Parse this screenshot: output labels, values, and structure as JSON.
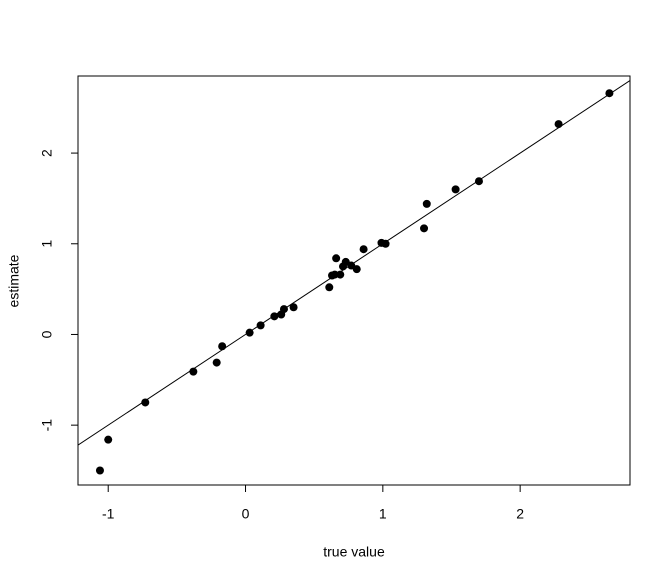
{
  "chart_data": {
    "type": "scatter",
    "x_label": "true value",
    "y_label": "estimate",
    "x": [
      -1.06,
      -1.0,
      -0.73,
      -0.38,
      -0.21,
      -0.17,
      0.03,
      0.11,
      0.21,
      0.26,
      0.28,
      0.35,
      0.61,
      0.63,
      0.65,
      0.66,
      0.69,
      0.71,
      0.73,
      0.77,
      0.81,
      0.86,
      0.99,
      1.02,
      1.3,
      1.32,
      1.53,
      1.7,
      2.28,
      2.65
    ],
    "values": [
      -1.5,
      -1.16,
      -0.75,
      -0.41,
      -0.31,
      -0.13,
      0.02,
      0.1,
      0.2,
      0.22,
      0.28,
      0.3,
      0.52,
      0.65,
      0.66,
      0.84,
      0.66,
      0.75,
      0.8,
      0.76,
      0.72,
      0.94,
      1.01,
      1.0,
      1.17,
      1.44,
      1.6,
      1.69,
      2.32,
      2.66
    ],
    "color": "#000000",
    "abline": {
      "intercept": 0,
      "slope": 1
    },
    "xlim": [
      -1.22,
      2.8
    ],
    "ylim": [
      -1.66,
      2.85
    ],
    "xticks": [
      -1,
      0,
      1,
      2
    ],
    "yticks": [
      -1,
      0,
      1,
      2
    ]
  }
}
